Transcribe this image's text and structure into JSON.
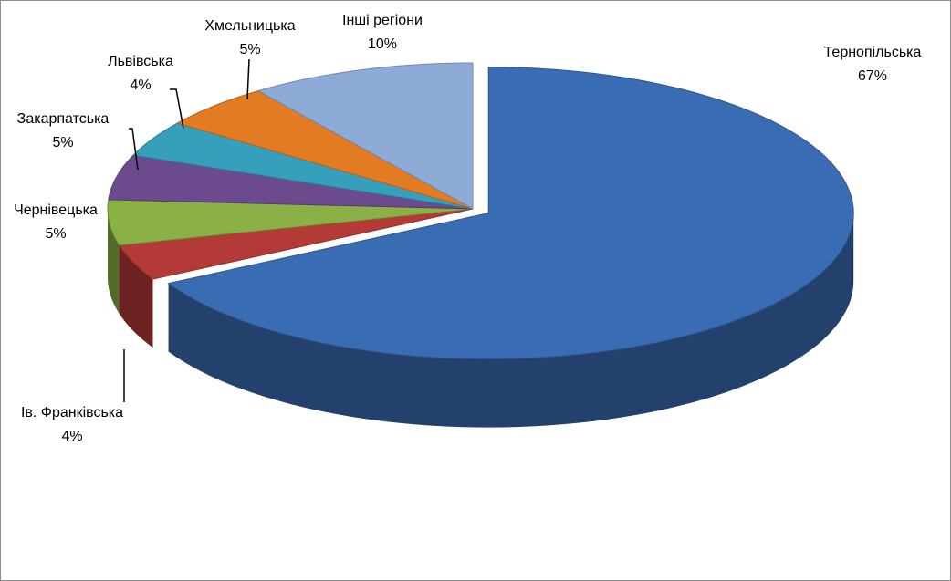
{
  "chart_data": {
    "type": "pie3d",
    "categories": [
      "Тернопільська",
      "Ів. Франківська",
      "Чернівецька",
      "Закарпатська",
      "Львівська",
      "Хмельницька",
      "Інші регіони"
    ],
    "values": [
      67,
      4,
      5,
      5,
      4,
      5,
      10
    ],
    "value_labels": [
      "67%",
      "4%",
      "5%",
      "5%",
      "4%",
      "5%",
      "10%"
    ],
    "colors": [
      "#3a6cb4",
      "#b43a37",
      "#8bb046",
      "#6b4b8e",
      "#36a0bc",
      "#e27b22",
      "#8eaad7"
    ]
  }
}
